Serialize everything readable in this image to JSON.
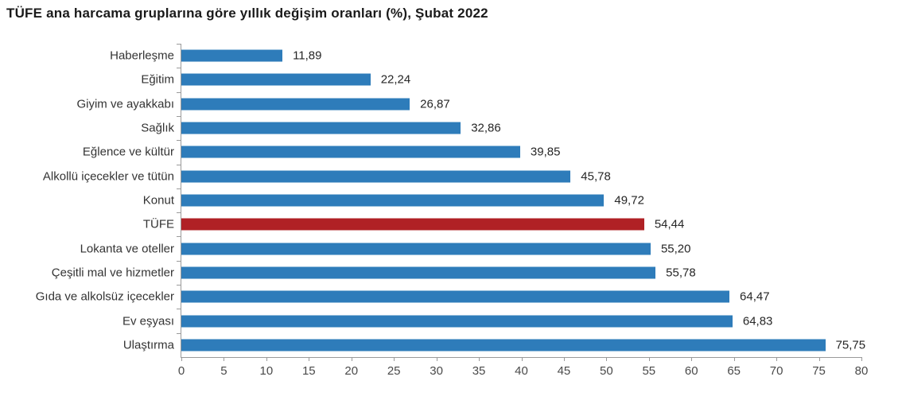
{
  "title": "TÜFE ana harcama gruplarına göre yıllık değişim oranları (%), Şubat 2022",
  "chart_data": {
    "type": "bar",
    "orientation": "horizontal",
    "title": "TÜFE ana harcama gruplarına göre yıllık değişim oranları (%), Şubat 2022",
    "categories": [
      "Haberleşme",
      "Eğitim",
      "Giyim ve ayakkabı",
      "Sağlık",
      "Eğlence ve kültür",
      "Alkollü içecekler ve tütün",
      "Konut",
      "TÜFE",
      "Lokanta ve oteller",
      "Çeşitli mal ve hizmetler",
      "Gıda ve alkolsüz içecekler",
      "Ev eşyası",
      "Ulaştırma"
    ],
    "values": [
      11.89,
      22.24,
      26.87,
      32.86,
      39.85,
      45.78,
      49.72,
      54.44,
      55.2,
      55.78,
      64.47,
      64.83,
      75.75
    ],
    "value_labels": [
      "11,89",
      "22,24",
      "26,87",
      "32,86",
      "39,85",
      "45,78",
      "49,72",
      "54,44",
      "55,20",
      "55,78",
      "64,47",
      "64,83",
      "75,75"
    ],
    "highlight_category": "TÜFE",
    "xlim": [
      0,
      80
    ],
    "x_ticks": [
      0,
      5,
      10,
      15,
      20,
      25,
      30,
      35,
      40,
      45,
      50,
      55,
      60,
      65,
      70,
      75,
      80
    ],
    "xlabel": "",
    "ylabel": "",
    "grid": false,
    "legend": "none",
    "colors": {
      "bar": "#2E7CBA",
      "highlight_bar": "#B02125",
      "axis": "#9A9A9A",
      "label_text": "#333333",
      "value_text": "#262626",
      "tick_text": "#4A4A4A",
      "title_text": "#1A1A1A"
    }
  }
}
